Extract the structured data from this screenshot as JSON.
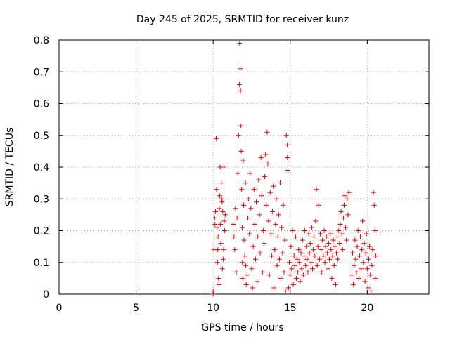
{
  "chart_data": {
    "type": "scatter",
    "title": "Day 245 of 2025, SRMTID for receiver kunz",
    "xlabel": "GPS time / hours",
    "ylabel": "SRMTID / TECUs",
    "xlim": [
      0,
      24
    ],
    "ylim": [
      0,
      0.8
    ],
    "xticks": [
      0,
      5,
      10,
      15,
      20
    ],
    "yticks": [
      0,
      0.1,
      0.2,
      0.3,
      0.4,
      0.5,
      0.6,
      0.7,
      0.8
    ],
    "xtick_labels": [
      "0",
      "5",
      "10",
      "15",
      "20"
    ],
    "ytick_labels": [
      "0",
      "0.1",
      "0.2",
      "0.3",
      "0.4",
      "0.5",
      "0.6",
      "0.7",
      "0.8"
    ],
    "grid": true,
    "marker": "+",
    "color": "#e00000",
    "series": [
      {
        "name": "SRMTID",
        "points": [
          [
            10.0,
            0.0
          ],
          [
            10.0,
            0.01
          ],
          [
            10.05,
            0.14
          ],
          [
            10.1,
            0.24
          ],
          [
            10.12,
            0.22
          ],
          [
            10.15,
            0.26
          ],
          [
            10.2,
            0.49
          ],
          [
            10.22,
            0.33
          ],
          [
            10.25,
            0.21
          ],
          [
            10.28,
            0.1
          ],
          [
            10.3,
            0.14
          ],
          [
            10.32,
            0.18
          ],
          [
            10.35,
            0.05
          ],
          [
            10.38,
            0.03
          ],
          [
            10.4,
            0.27
          ],
          [
            10.42,
            0.31
          ],
          [
            10.45,
            0.4
          ],
          [
            10.48,
            0.22
          ],
          [
            10.5,
            0.16
          ],
          [
            10.52,
            0.35
          ],
          [
            10.55,
            0.3
          ],
          [
            10.58,
            0.29
          ],
          [
            10.6,
            0.08
          ],
          [
            10.62,
            0.26
          ],
          [
            10.65,
            0.11
          ],
          [
            10.68,
            0.14
          ],
          [
            10.7,
            0.4
          ],
          [
            10.72,
            0.23
          ],
          [
            10.75,
            0.2
          ],
          [
            10.78,
            0.25
          ],
          [
            11.3,
            0.22
          ],
          [
            11.35,
            0.18
          ],
          [
            11.4,
            0.14
          ],
          [
            11.45,
            0.27
          ],
          [
            11.5,
            0.07
          ],
          [
            11.55,
            0.24
          ],
          [
            11.6,
            0.38
          ],
          [
            11.65,
            0.5
          ],
          [
            11.7,
            0.66
          ],
          [
            11.72,
            0.79
          ],
          [
            11.75,
            0.71
          ],
          [
            11.78,
            0.64
          ],
          [
            11.8,
            0.53
          ],
          [
            11.82,
            0.45
          ],
          [
            11.85,
            0.33
          ],
          [
            11.88,
            0.21
          ],
          [
            11.9,
            0.1
          ],
          [
            11.92,
            0.05
          ],
          [
            11.95,
            0.42
          ],
          [
            11.98,
            0.28
          ],
          [
            12.0,
            0.17
          ],
          [
            12.05,
            0.12
          ],
          [
            12.1,
            0.35
          ],
          [
            12.12,
            0.09
          ],
          [
            12.15,
            0.03
          ],
          [
            12.2,
            0.06
          ],
          [
            12.25,
            0.24
          ],
          [
            12.3,
            0.3
          ],
          [
            12.35,
            0.19
          ],
          [
            12.4,
            0.38
          ],
          [
            12.45,
            0.27
          ],
          [
            12.5,
            0.08
          ],
          [
            12.55,
            0.02
          ],
          [
            12.6,
            0.15
          ],
          [
            12.65,
            0.33
          ],
          [
            12.7,
            0.22
          ],
          [
            12.75,
            0.11
          ],
          [
            12.8,
            0.29
          ],
          [
            12.85,
            0.04
          ],
          [
            12.9,
            0.18
          ],
          [
            12.95,
            0.36
          ],
          [
            13.0,
            0.25
          ],
          [
            13.05,
            0.13
          ],
          [
            13.1,
            0.43
          ],
          [
            13.15,
            0.31
          ],
          [
            13.2,
            0.07
          ],
          [
            13.25,
            0.2
          ],
          [
            13.3,
            0.16
          ],
          [
            13.35,
            0.37
          ],
          [
            13.4,
            0.44
          ],
          [
            13.45,
            0.28
          ],
          [
            13.5,
            0.51
          ],
          [
            13.55,
            0.41
          ],
          [
            13.6,
            0.23
          ],
          [
            13.65,
            0.06
          ],
          [
            13.7,
            0.32
          ],
          [
            13.75,
            0.19
          ],
          [
            13.8,
            0.12
          ],
          [
            13.85,
            0.26
          ],
          [
            13.9,
            0.34
          ],
          [
            13.95,
            0.02
          ],
          [
            14.0,
            0.14
          ],
          [
            14.05,
            0.22
          ],
          [
            14.1,
            0.3
          ],
          [
            14.15,
            0.09
          ],
          [
            14.2,
            0.18
          ],
          [
            14.25,
            0.25
          ],
          [
            14.3,
            0.11
          ],
          [
            14.35,
            0.35
          ],
          [
            14.4,
            0.05
          ],
          [
            14.45,
            0.21
          ],
          [
            14.5,
            0.13
          ],
          [
            14.55,
            0.28
          ],
          [
            14.6,
            0.07
          ],
          [
            14.65,
            0.17
          ],
          [
            14.7,
            0.01
          ],
          [
            14.75,
            0.5
          ],
          [
            14.8,
            0.47
          ],
          [
            14.82,
            0.43
          ],
          [
            14.85,
            0.39
          ],
          [
            14.9,
            0.02
          ],
          [
            14.95,
            0.1
          ],
          [
            15.0,
            0.06
          ],
          [
            15.05,
            0.15
          ],
          [
            15.1,
            0.08
          ],
          [
            15.15,
            0.2
          ],
          [
            15.2,
            0.03
          ],
          [
            15.25,
            0.12
          ],
          [
            15.3,
            0.09
          ],
          [
            15.35,
            0.18
          ],
          [
            15.4,
            0.05
          ],
          [
            15.45,
            0.11
          ],
          [
            15.5,
            0.07
          ],
          [
            15.55,
            0.14
          ],
          [
            15.6,
            0.1
          ],
          [
            15.65,
            0.04
          ],
          [
            15.7,
            0.13
          ],
          [
            15.75,
            0.08
          ],
          [
            15.8,
            0.17
          ],
          [
            15.85,
            0.06
          ],
          [
            15.9,
            0.12
          ],
          [
            15.95,
            0.2
          ],
          [
            16.0,
            0.09
          ],
          [
            16.05,
            0.15
          ],
          [
            16.1,
            0.11
          ],
          [
            16.15,
            0.07
          ],
          [
            16.2,
            0.19
          ],
          [
            16.25,
            0.13
          ],
          [
            16.3,
            0.16
          ],
          [
            16.35,
            0.1
          ],
          [
            16.4,
            0.21
          ],
          [
            16.45,
            0.08
          ],
          [
            16.5,
            0.14
          ],
          [
            16.55,
            0.18
          ],
          [
            16.6,
            0.12
          ],
          [
            16.65,
            0.23
          ],
          [
            16.7,
            0.33
          ],
          [
            16.75,
            0.09
          ],
          [
            16.8,
            0.15
          ],
          [
            16.85,
            0.28
          ],
          [
            16.9,
            0.11
          ],
          [
            16.95,
            0.19
          ],
          [
            17.0,
            0.14
          ],
          [
            17.05,
            0.07
          ],
          [
            17.1,
            0.17
          ],
          [
            17.15,
            0.12
          ],
          [
            17.2,
            0.2
          ],
          [
            17.25,
            0.1
          ],
          [
            17.3,
            0.15
          ],
          [
            17.35,
            0.18
          ],
          [
            17.4,
            0.13
          ],
          [
            17.45,
            0.08
          ],
          [
            17.5,
            0.16
          ],
          [
            17.55,
            0.11
          ],
          [
            17.6,
            0.19
          ],
          [
            17.65,
            0.14
          ],
          [
            17.7,
            0.05
          ],
          [
            17.75,
            0.12
          ],
          [
            17.8,
            0.17
          ],
          [
            17.85,
            0.09
          ],
          [
            17.9,
            0.15
          ],
          [
            17.95,
            0.03
          ],
          [
            18.0,
            0.13
          ],
          [
            18.05,
            0.18
          ],
          [
            18.1,
            0.11
          ],
          [
            18.15,
            0.2
          ],
          [
            18.2,
            0.16
          ],
          [
            18.25,
            0.22
          ],
          [
            18.3,
            0.26
          ],
          [
            18.35,
            0.19
          ],
          [
            18.4,
            0.14
          ],
          [
            18.45,
            0.24
          ],
          [
            18.5,
            0.28
          ],
          [
            18.55,
            0.31
          ],
          [
            18.6,
            0.21
          ],
          [
            18.65,
            0.17
          ],
          [
            18.7,
            0.3
          ],
          [
            18.75,
            0.25
          ],
          [
            18.8,
            0.32
          ],
          [
            19.0,
            0.06
          ],
          [
            19.05,
            0.13
          ],
          [
            19.1,
            0.03
          ],
          [
            19.15,
            0.09
          ],
          [
            19.2,
            0.17
          ],
          [
            19.25,
            0.11
          ],
          [
            19.3,
            0.07
          ],
          [
            19.35,
            0.15
          ],
          [
            19.4,
            0.2
          ],
          [
            19.45,
            0.05
          ],
          [
            19.5,
            0.12
          ],
          [
            19.55,
            0.18
          ],
          [
            19.6,
            0.08
          ],
          [
            19.65,
            0.14
          ],
          [
            19.7,
            0.23
          ],
          [
            19.75,
            0.1
          ],
          [
            19.8,
            0.16
          ],
          [
            19.85,
            0.04
          ],
          [
            19.9,
            0.13
          ],
          [
            19.95,
            0.19
          ],
          [
            20.0,
            0.08
          ],
          [
            20.05,
            0.02
          ],
          [
            20.1,
            0.11
          ],
          [
            20.15,
            0.15
          ],
          [
            20.2,
            0.06
          ],
          [
            20.25,
            0.01
          ],
          [
            20.3,
            0.09
          ],
          [
            20.35,
            0.14
          ],
          [
            20.4,
            0.32
          ],
          [
            20.45,
            0.28
          ],
          [
            20.5,
            0.2
          ],
          [
            20.52,
            0.05
          ],
          [
            20.55,
            0.12
          ]
        ]
      }
    ]
  }
}
